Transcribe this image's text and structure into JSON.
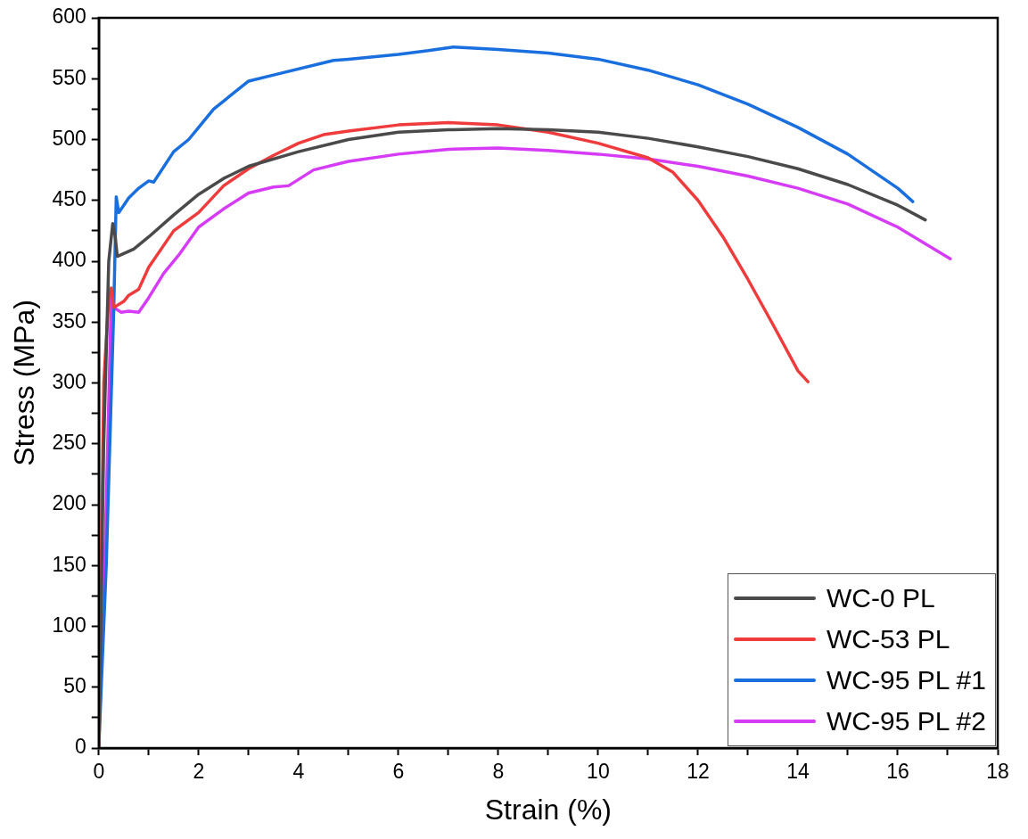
{
  "chart_data": {
    "type": "line",
    "xlabel": "Strain (%)",
    "ylabel": "Stress (MPa)",
    "xlim": [
      0,
      18
    ],
    "xticks": [
      0,
      {
        "value": 1,
        "label": null
      },
      2,
      {
        "value": 3,
        "label": null
      },
      4,
      {
        "value": 5,
        "label": null
      },
      6,
      {
        "value": 7,
        "label": null
      },
      8,
      {
        "value": 9,
        "label": null
      },
      10,
      {
        "value": 11,
        "label": null
      },
      12,
      {
        "value": 13,
        "label": null
      },
      14,
      {
        "value": 15,
        "label": null
      },
      16,
      {
        "value": 17,
        "label": null
      },
      18
    ],
    "ylim": [
      0,
      600
    ],
    "yticks": [
      0,
      {
        "value": 25,
        "label": null
      },
      50,
      {
        "value": 75,
        "label": null
      },
      100,
      {
        "value": 125,
        "label": null
      },
      150,
      {
        "value": 175,
        "label": null
      },
      200,
      {
        "value": 225,
        "label": null
      },
      250,
      {
        "value": 275,
        "label": null
      },
      300,
      {
        "value": 325,
        "label": null
      },
      350,
      {
        "value": 375,
        "label": null
      },
      400,
      {
        "value": 425,
        "label": null
      },
      450,
      {
        "value": 475,
        "label": null
      },
      500,
      {
        "value": 525,
        "label": null
      },
      550,
      {
        "value": 575,
        "label": null
      },
      600
    ],
    "grid": false,
    "legend": "bottom right",
    "marker": "none",
    "line_style": "solid",
    "series": [
      {
        "name": "WC-0 PL",
        "color": "#4a4a4a",
        "x": [
          0,
          0.1,
          0.2,
          0.28,
          0.33,
          0.37,
          0.7,
          1,
          1.5,
          2,
          2.5,
          3,
          4,
          5,
          6,
          7,
          8,
          9,
          10,
          11,
          12,
          13,
          14,
          15,
          16,
          16.55
        ],
        "values": [
          0,
          250,
          400,
          431,
          420,
          404,
          410,
          420,
          438,
          455,
          468,
          478,
          490,
          500,
          506,
          508,
          509,
          508,
          506,
          501,
          494,
          486,
          476,
          463,
          446,
          434
        ]
      },
      {
        "name": "WC-53 PL",
        "color": "#ef3b3b",
        "x": [
          0,
          0.1,
          0.2,
          0.25,
          0.3,
          0.5,
          0.6,
          0.8,
          1,
          1.5,
          2,
          2.5,
          3,
          3.5,
          4,
          4.5,
          5,
          6,
          7,
          8,
          9,
          10,
          11,
          11.5,
          12,
          12.5,
          13,
          13.5,
          14,
          14.2
        ],
        "values": [
          0,
          300,
          370,
          378,
          362,
          367,
          372,
          377,
          395,
          425,
          440,
          462,
          476,
          487,
          497,
          504,
          507,
          512,
          514,
          512,
          506,
          497,
          485,
          473,
          450,
          420,
          385,
          348,
          310,
          301
        ]
      },
      {
        "name": "WC-95 PL #1",
        "color": "#1a6fdf",
        "x": [
          0,
          0.15,
          0.3,
          0.35,
          0.4,
          0.6,
          0.8,
          1,
          1.1,
          1.5,
          1.8,
          2,
          2.3,
          3,
          3.5,
          4.7,
          5,
          6,
          6.6,
          7.1,
          8,
          9,
          10,
          11,
          12,
          13,
          14,
          15,
          16,
          16.3
        ],
        "values": [
          0,
          150,
          360,
          453,
          440,
          452,
          460,
          466,
          465,
          490,
          500,
          510,
          525,
          548,
          553,
          565,
          566,
          570,
          573,
          576,
          574,
          571,
          566,
          557,
          545,
          529,
          510,
          488,
          460,
          449
        ]
      },
      {
        "name": "WC-95 PL #2",
        "color": "#d63cf5",
        "x": [
          0,
          0.15,
          0.25,
          0.3,
          0.45,
          0.6,
          0.8,
          1,
          1.3,
          1.6,
          2,
          2.5,
          3,
          3.5,
          3.8,
          4.3,
          5,
          6,
          7,
          8,
          9,
          10,
          11,
          12,
          13,
          14,
          15,
          16,
          17.05
        ],
        "values": [
          0,
          200,
          370,
          362,
          358,
          359,
          358,
          370,
          390,
          405,
          428,
          443,
          456,
          461,
          462,
          475,
          482,
          488,
          492,
          493,
          491,
          488,
          484,
          478,
          470,
          460,
          447,
          428,
          402
        ]
      }
    ]
  }
}
